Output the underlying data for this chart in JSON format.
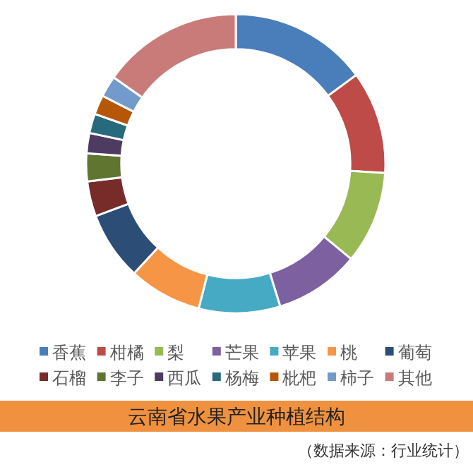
{
  "chart_data": {
    "type": "donut",
    "title": "云南省水果产业种植结构",
    "legend": "bottom",
    "categories": [
      "香蕉",
      "柑橘",
      "梨",
      "芒果",
      "苹果",
      "桃",
      "葡萄",
      "石榴",
      "李子",
      "西瓜",
      "杨梅",
      "枇杷",
      "柿子",
      "其他"
    ],
    "values": [
      14.9,
      11.1,
      10.0,
      9.2,
      8.8,
      7.9,
      7.4,
      3.8,
      3.0,
      2.2,
      2.1,
      2.1,
      2.3,
      15.2
    ],
    "colors": [
      "#4a7ebb",
      "#be4b48",
      "#98b954",
      "#7d60a0",
      "#46aac5",
      "#f69545",
      "#2c4d75",
      "#772c2a",
      "#5f7530",
      "#4d3b62",
      "#276a7c",
      "#b65708",
      "#729aca",
      "#c97b79"
    ],
    "annotations": [
      "（数据来源：行业统计）"
    ]
  }
}
